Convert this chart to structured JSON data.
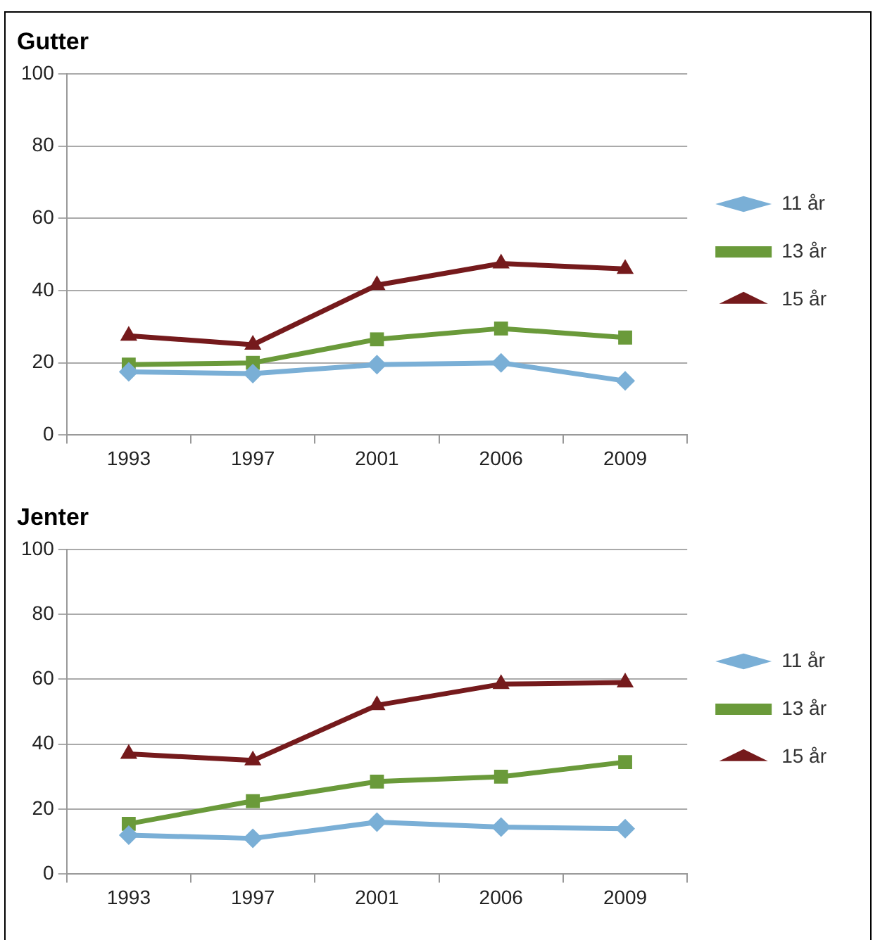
{
  "chart_data": [
    {
      "type": "line",
      "title": "Gutter",
      "categories": [
        "1993",
        "1997",
        "2001",
        "2006",
        "2009"
      ],
      "ylim": [
        0,
        100
      ],
      "yticks": [
        0,
        20,
        40,
        60,
        80,
        100
      ],
      "grid": "y",
      "legend": "right",
      "series": [
        {
          "name": "11 år",
          "color": "#7aafd6",
          "marker": "diamond",
          "values": [
            17.5,
            17,
            19.5,
            20,
            15
          ]
        },
        {
          "name": "13 år",
          "color": "#6a9a3a",
          "marker": "square",
          "values": [
            19.5,
            20,
            26.5,
            29.5,
            27
          ]
        },
        {
          "name": "15 år",
          "color": "#751a1c",
          "marker": "triangle",
          "values": [
            27.5,
            25,
            41.5,
            47.5,
            46
          ]
        }
      ]
    },
    {
      "type": "line",
      "title": "Jenter",
      "categories": [
        "1993",
        "1997",
        "2001",
        "2006",
        "2009"
      ],
      "ylim": [
        0,
        100
      ],
      "yticks": [
        0,
        20,
        40,
        60,
        80,
        100
      ],
      "grid": "y",
      "legend": "right",
      "series": [
        {
          "name": "11 år",
          "color": "#7aafd6",
          "marker": "diamond",
          "values": [
            12,
            11,
            16,
            14.5,
            14
          ]
        },
        {
          "name": "13 år",
          "color": "#6a9a3a",
          "marker": "square",
          "values": [
            15.5,
            22.5,
            28.5,
            30,
            34.5
          ]
        },
        {
          "name": "15 år",
          "color": "#751a1c",
          "marker": "triangle",
          "values": [
            37,
            35,
            52,
            58.5,
            59
          ]
        }
      ]
    }
  ]
}
